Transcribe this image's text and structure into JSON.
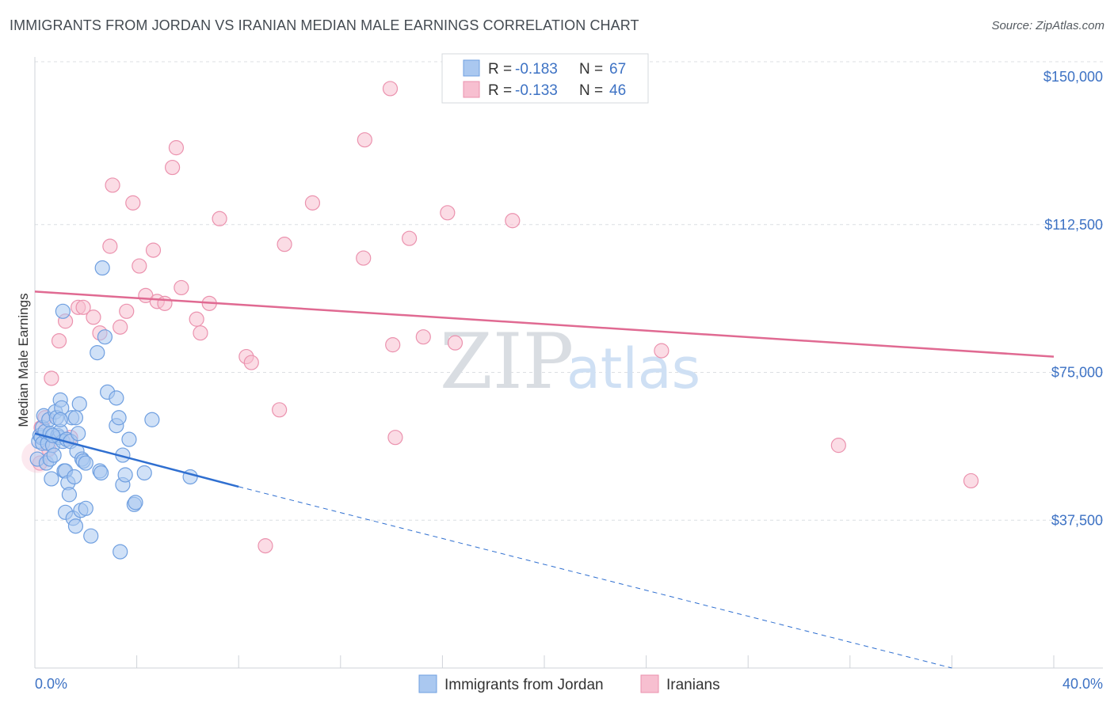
{
  "title": "IMMIGRANTS FROM JORDAN VS IRANIAN MEDIAN MALE EARNINGS CORRELATION CHART",
  "source": "Source: ZipAtlas.com",
  "colors": {
    "jordan_fill": "#aac8f0",
    "jordan_stroke": "#6f9fe0",
    "jordan_line": "#2f6fd0",
    "iran_fill": "#f7bfd0",
    "iran_stroke": "#eb92ae",
    "iran_line": "#e06a92",
    "axis_text": "#3d72c4",
    "grid": "#dcdfe3"
  },
  "watermark": {
    "zip": "ZIP",
    "atlas": "atlas"
  },
  "legend": {
    "rows": [
      {
        "r_label": "R = ",
        "r_value": "-0.183",
        "n_label": "N = ",
        "n_value": "67"
      },
      {
        "r_label": "R = ",
        "r_value": "-0.133",
        "n_label": "N = ",
        "n_value": "46"
      }
    ]
  },
  "chart_data": {
    "type": "scatter",
    "title": "IMMIGRANTS FROM JORDAN VS IRANIAN MEDIAN MALE EARNINGS CORRELATION CHART",
    "xlabel": "",
    "ylabel": "Median Male Earnings",
    "xlim": [
      0,
      40
    ],
    "ylim": [
      0,
      155000
    ],
    "x_tick_labels": [
      "0.0%",
      "40.0%"
    ],
    "y_ticks": [
      37500,
      75000,
      112500,
      150000
    ],
    "y_tick_labels": [
      "$37,500",
      "$75,000",
      "$112,500",
      "$150,000"
    ],
    "series": [
      {
        "name": "Immigrants from Jordan",
        "R": -0.183,
        "N": 67,
        "trend": {
          "x0": 0,
          "y0": 59500,
          "x1": 8,
          "y1": 46000,
          "dashed_to_x": 36,
          "dashed_to_y": 0
        },
        "points": [
          [
            0.1,
            53000
          ],
          [
            0.15,
            57500
          ],
          [
            0.2,
            59000
          ],
          [
            0.25,
            58500
          ],
          [
            0.3,
            61000
          ],
          [
            0.3,
            57000
          ],
          [
            0.35,
            64000
          ],
          [
            0.4,
            60000
          ],
          [
            0.45,
            52000
          ],
          [
            0.5,
            57000
          ],
          [
            0.55,
            63000
          ],
          [
            0.6,
            59500
          ],
          [
            0.6,
            53000
          ],
          [
            0.65,
            48000
          ],
          [
            0.7,
            56500
          ],
          [
            0.75,
            54000
          ],
          [
            0.8,
            65000
          ],
          [
            0.85,
            63500
          ],
          [
            0.9,
            59000
          ],
          [
            0.95,
            58500
          ],
          [
            1.0,
            68000
          ],
          [
            1.0,
            60000
          ],
          [
            1.05,
            66000
          ],
          [
            1.1,
            90500
          ],
          [
            1.1,
            57500
          ],
          [
            1.15,
            50000
          ],
          [
            1.2,
            50000
          ],
          [
            1.2,
            39500
          ],
          [
            1.25,
            58000
          ],
          [
            1.3,
            47000
          ],
          [
            1.35,
            44000
          ],
          [
            1.4,
            57500
          ],
          [
            1.45,
            63500
          ],
          [
            1.5,
            38000
          ],
          [
            1.55,
            48500
          ],
          [
            1.6,
            63500
          ],
          [
            1.6,
            36000
          ],
          [
            1.65,
            55000
          ],
          [
            1.7,
            59500
          ],
          [
            1.75,
            67000
          ],
          [
            1.8,
            40000
          ],
          [
            1.85,
            53000
          ],
          [
            1.9,
            52500
          ],
          [
            2.0,
            40500
          ],
          [
            2.0,
            52000
          ],
          [
            2.2,
            33500
          ],
          [
            2.45,
            80000
          ],
          [
            2.55,
            50000
          ],
          [
            2.6,
            49500
          ],
          [
            2.65,
            101500
          ],
          [
            2.75,
            84000
          ],
          [
            2.85,
            70000
          ],
          [
            3.2,
            61500
          ],
          [
            3.2,
            68500
          ],
          [
            3.3,
            63500
          ],
          [
            3.35,
            29500
          ],
          [
            3.45,
            54000
          ],
          [
            3.45,
            46500
          ],
          [
            3.55,
            49000
          ],
          [
            3.7,
            58000
          ],
          [
            3.9,
            41500
          ],
          [
            3.95,
            42000
          ],
          [
            4.3,
            49500
          ],
          [
            4.6,
            63000
          ],
          [
            6.1,
            48500
          ],
          [
            1.0,
            63000
          ],
          [
            0.7,
            59000
          ]
        ]
      },
      {
        "name": "Iranians",
        "R": -0.133,
        "N": 46,
        "trend": {
          "x0": 0,
          "y0": 95500,
          "x1": 40,
          "y1": 79000
        },
        "points": [
          [
            0.2,
            52000
          ],
          [
            0.25,
            61000
          ],
          [
            0.4,
            63500
          ],
          [
            0.55,
            55500
          ],
          [
            0.65,
            73500
          ],
          [
            0.95,
            83000
          ],
          [
            1.2,
            88000
          ],
          [
            1.4,
            58500
          ],
          [
            1.7,
            91500
          ],
          [
            1.9,
            91500
          ],
          [
            2.3,
            89000
          ],
          [
            2.55,
            85000
          ],
          [
            2.95,
            107000
          ],
          [
            3.05,
            122500
          ],
          [
            3.35,
            86500
          ],
          [
            3.6,
            90500
          ],
          [
            3.85,
            118000
          ],
          [
            4.1,
            102000
          ],
          [
            4.35,
            94500
          ],
          [
            4.65,
            106000
          ],
          [
            4.8,
            93000
          ],
          [
            5.1,
            92500
          ],
          [
            5.4,
            127000
          ],
          [
            5.55,
            132000
          ],
          [
            5.75,
            96500
          ],
          [
            6.35,
            88500
          ],
          [
            6.5,
            85000
          ],
          [
            6.85,
            92500
          ],
          [
            7.25,
            114000
          ],
          [
            8.3,
            79000
          ],
          [
            8.5,
            77500
          ],
          [
            9.05,
            31000
          ],
          [
            9.6,
            65500
          ],
          [
            9.8,
            107500
          ],
          [
            10.9,
            118000
          ],
          [
            12.9,
            104000
          ],
          [
            12.95,
            134000
          ],
          [
            13.95,
            147000
          ],
          [
            14.05,
            82000
          ],
          [
            14.15,
            58500
          ],
          [
            14.7,
            109000
          ],
          [
            15.25,
            84000
          ],
          [
            16.2,
            115500
          ],
          [
            16.5,
            82500
          ],
          [
            18.75,
            113500
          ],
          [
            24.6,
            80500
          ]
        ]
      }
    ],
    "extra_points_iran": [
      [
        31.55,
        56500
      ],
      [
        36.75,
        47500
      ]
    ]
  },
  "bottom_legend": {
    "jordan": "Immigrants from Jordan",
    "iran": "Iranians"
  }
}
